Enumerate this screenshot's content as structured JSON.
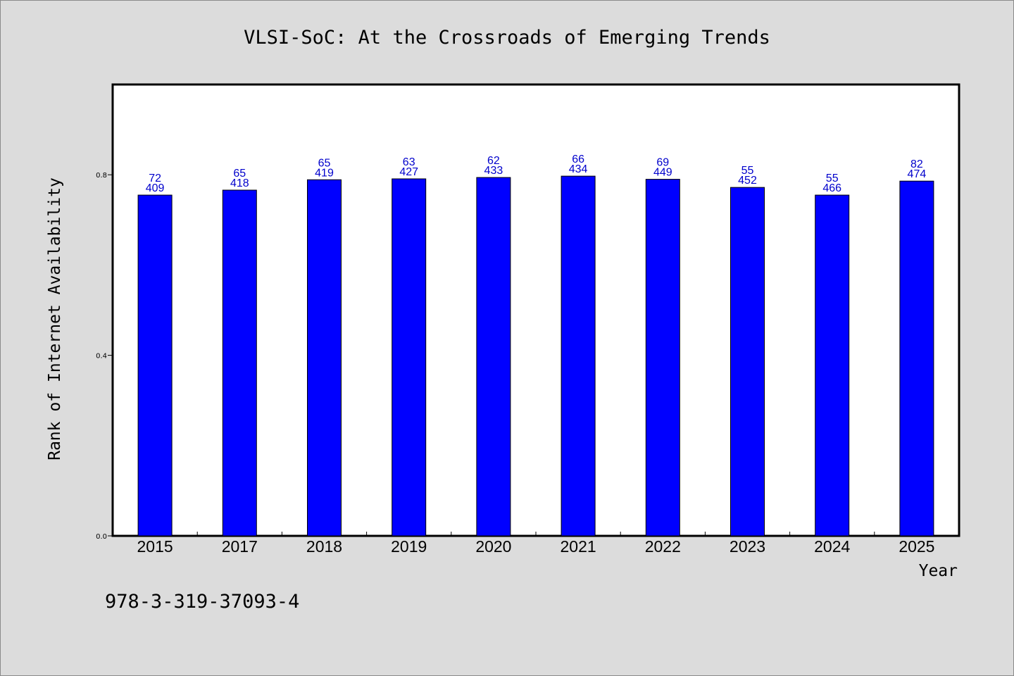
{
  "chart_data": {
    "type": "bar",
    "title": "VLSI-SoC: At the Crossroads of Emerging Trends",
    "xlabel": "Year",
    "ylabel": "Rank of Internet Availability",
    "categories": [
      "2015",
      "2017",
      "2018",
      "2019",
      "2020",
      "2021",
      "2022",
      "2023",
      "2024",
      "2025"
    ],
    "series": [
      {
        "values": [
          0.755,
          0.766,
          0.789,
          0.791,
          0.794,
          0.797,
          0.79,
          0.772,
          0.755,
          0.786
        ],
        "label_top": [
          "72",
          "65",
          "65",
          "63",
          "62",
          "66",
          "69",
          "55",
          "55",
          "82"
        ],
        "label_bottom": [
          "409",
          "418",
          "419",
          "427",
          "433",
          "434",
          "449",
          "452",
          "466",
          "474"
        ]
      }
    ],
    "ylim": [
      0.0,
      1.0
    ],
    "yticks": [
      "0.0",
      "0.4",
      "0.8"
    ],
    "ytick_values": [
      0.0,
      0.4,
      0.8
    ],
    "grid": false,
    "legend": "none",
    "colors": {
      "bar_fill": "#0000ff",
      "bar_stroke": "#000000",
      "data_label": "#0000cc",
      "plot_background": "#ffffff",
      "page_background": "#dcdcdc"
    }
  },
  "footer": {
    "isbn": "978-3-319-37093-4"
  }
}
